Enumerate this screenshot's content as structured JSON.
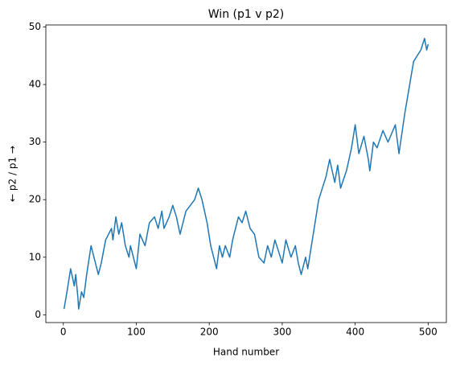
{
  "chart_data": {
    "type": "line",
    "title": "Win (p1 v p2)",
    "xlabel": "Hand number",
    "ylabel": "← p2 / p1 →",
    "x": [
      1,
      5,
      10,
      15,
      17,
      20,
      21,
      25,
      28,
      32,
      38,
      42,
      48,
      52,
      58,
      66,
      68,
      72,
      76,
      80,
      85,
      90,
      92,
      100,
      105,
      112,
      118,
      125,
      130,
      135,
      138,
      145,
      150,
      155,
      160,
      168,
      180,
      185,
      190,
      197,
      202,
      210,
      214,
      218,
      222,
      228,
      232,
      240,
      245,
      250,
      256,
      262,
      268,
      275,
      280,
      285,
      290,
      300,
      305,
      312,
      318,
      322,
      326,
      332,
      335,
      340,
      350,
      360,
      365,
      372,
      376,
      380,
      388,
      395,
      400,
      405,
      412,
      418,
      420,
      425,
      430,
      438,
      445,
      455,
      460,
      468,
      480,
      490,
      495,
      498,
      500
    ],
    "series": [
      {
        "name": "win",
        "color": "#1f77b4",
        "values": [
          1,
          4,
          8,
          5,
          7,
          3,
          1,
          4,
          3,
          7,
          12,
          10,
          7,
          9,
          13,
          15,
          13,
          17,
          14,
          16,
          12,
          10,
          12,
          8,
          14,
          12,
          16,
          17,
          15,
          18,
          15,
          17,
          19,
          17,
          14,
          18,
          20,
          22,
          20,
          16,
          12,
          8,
          12,
          10,
          12,
          10,
          13,
          17,
          16,
          18,
          15,
          14,
          10,
          9,
          12,
          10,
          13,
          9,
          13,
          10,
          12,
          9,
          7,
          10,
          8,
          12,
          20,
          24,
          27,
          23,
          26,
          22,
          25,
          29,
          33,
          28,
          31,
          27,
          25,
          30,
          29,
          32,
          30,
          33,
          28,
          35,
          44,
          46,
          48,
          46,
          47
        ]
      }
    ],
    "xlim": [
      -23.95,
      524.95
    ],
    "xticks": [
      0,
      100,
      200,
      300,
      400,
      500
    ],
    "ylim": [
      -1.35,
      50.35
    ],
    "yticks": [
      0,
      10,
      20,
      30,
      40,
      50
    ]
  }
}
